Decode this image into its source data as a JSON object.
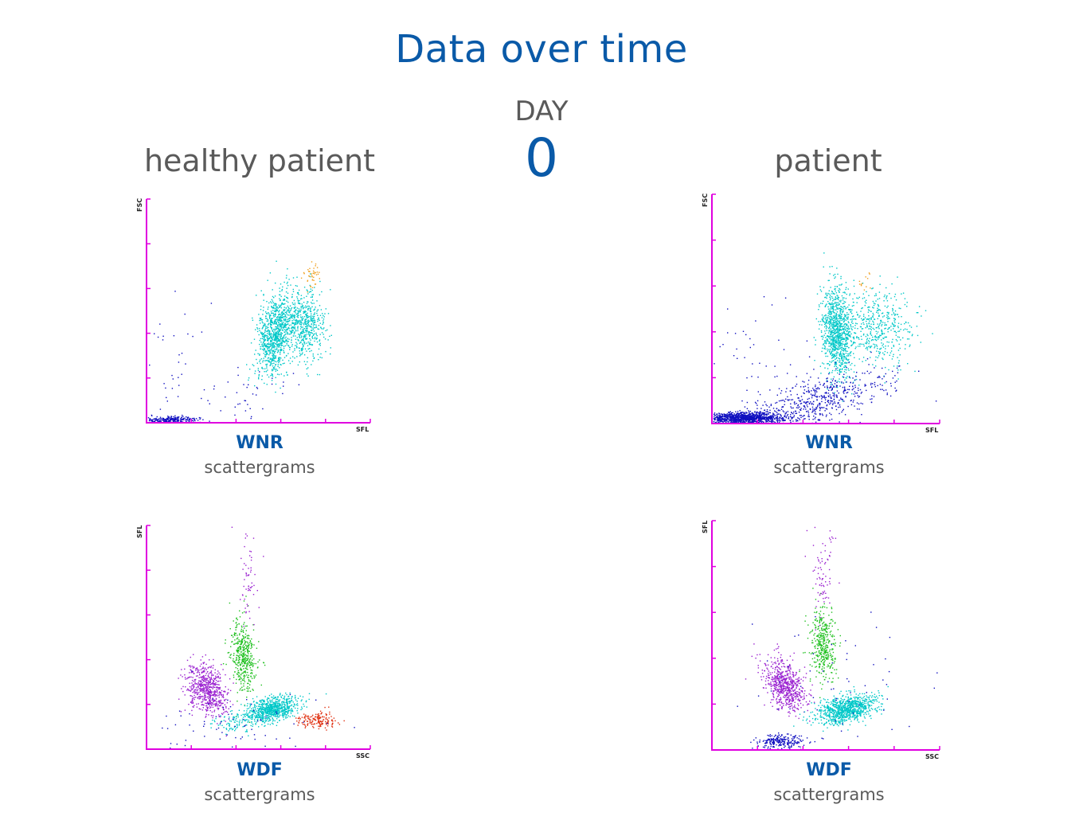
{
  "header": {
    "title": "Data over time",
    "day_label": "DAY",
    "day_value": "0"
  },
  "columns": {
    "left_title": "healthy patient",
    "right_title": "patient"
  },
  "captions": {
    "wnr": "WNR",
    "wdf": "WDF",
    "sub": "scattergrams"
  },
  "colors": {
    "axis": "#e000e0",
    "accent_blue": "#0a5aa8",
    "text_gray": "#5a5a5a",
    "basophil_orange": "#f0a020",
    "neutrophil_cyan": "#00c8c8",
    "debris_blue": "#1010c0",
    "lymph_purple": "#9a20d0",
    "mono_green": "#20c020",
    "eos_red": "#e03010"
  },
  "chart_data": [
    {
      "id": "wnr-healthy",
      "type": "scatter",
      "title": "WNR",
      "xlabel": "SFL",
      "ylabel": "FSC",
      "xlim": [
        0,
        100
      ],
      "ylim": [
        0,
        100
      ],
      "clusters": [
        {
          "name": "neutrophils",
          "color": "#00c8c8",
          "n": 900,
          "cx": 57,
          "cy": 40,
          "sx": 3.6,
          "sy": 9,
          "rot": -0.15
        },
        {
          "name": "neutrophils-right",
          "color": "#00c8c8",
          "n": 600,
          "cx": 70,
          "cy": 44,
          "sx": 4.5,
          "sy": 8,
          "rot": 0
        },
        {
          "name": "basophils",
          "color": "#f0a020",
          "n": 40,
          "cx": 73,
          "cy": 65,
          "sx": 2,
          "sy": 3,
          "rot": 0
        },
        {
          "name": "debris-floor",
          "color": "#1010c0",
          "n": 260,
          "cx": 10,
          "cy": 1.5,
          "sx": 7,
          "sy": 0.8,
          "rot": 0
        },
        {
          "name": "debris-rise",
          "color": "#1010c0",
          "n": 40,
          "cx": 40,
          "cy": 12,
          "sx": 16,
          "sy": 5,
          "rot": 0.3
        },
        {
          "name": "ghost-scatter",
          "color": "#1010c0",
          "n": 35,
          "cx": 10,
          "cy": 25,
          "sx": 8,
          "sy": 18,
          "rot": 0
        }
      ]
    },
    {
      "id": "wnr-patient",
      "type": "scatter",
      "title": "WNR",
      "xlabel": "SFL",
      "ylabel": "FSC",
      "xlim": [
        0,
        100
      ],
      "ylim": [
        0,
        100
      ],
      "clusters": [
        {
          "name": "neutrophils-core",
          "color": "#00c8c8",
          "n": 1000,
          "cx": 55,
          "cy": 40,
          "sx": 3.5,
          "sy": 10,
          "rot": 0.05
        },
        {
          "name": "neutrophils-spread",
          "color": "#00c8c8",
          "n": 450,
          "cx": 73,
          "cy": 42,
          "sx": 7,
          "sy": 8,
          "rot": 0
        },
        {
          "name": "basophils",
          "color": "#f0a020",
          "n": 12,
          "cx": 67,
          "cy": 62,
          "sx": 2,
          "sy": 2,
          "rot": 0
        },
        {
          "name": "debris-floor",
          "color": "#1010c0",
          "n": 1100,
          "cx": 14,
          "cy": 2.5,
          "sx": 9,
          "sy": 1.3,
          "rot": 0
        },
        {
          "name": "debris-arc",
          "color": "#1010c0",
          "n": 600,
          "cx": 45,
          "cy": 10,
          "sx": 18,
          "sy": 5,
          "rot": 0.28
        },
        {
          "name": "ghost-scatter",
          "color": "#1010c0",
          "n": 40,
          "cx": 20,
          "cy": 28,
          "sx": 12,
          "sy": 15,
          "rot": 0
        }
      ]
    },
    {
      "id": "wdf-healthy",
      "type": "scatter",
      "title": "WDF",
      "xlabel": "SSC",
      "ylabel": "SFL",
      "xlim": [
        0,
        100
      ],
      "ylim": [
        0,
        100
      ],
      "clusters": [
        {
          "name": "lymphocytes",
          "color": "#9a20d0",
          "n": 650,
          "cx": 27,
          "cy": 27,
          "sx": 4,
          "sy": 6,
          "rot": 0.5
        },
        {
          "name": "monocytes",
          "color": "#20c020",
          "n": 420,
          "cx": 43,
          "cy": 42,
          "sx": 2.8,
          "sy": 8,
          "rot": 0.1
        },
        {
          "name": "mono-tail",
          "color": "#9a20d0",
          "n": 60,
          "cx": 45,
          "cy": 78,
          "sx": 2.5,
          "sy": 12,
          "rot": 0
        },
        {
          "name": "neutrophils",
          "color": "#00c8c8",
          "n": 800,
          "cx": 56,
          "cy": 18,
          "sx": 6,
          "sy": 2.5,
          "rot": 0.2
        },
        {
          "name": "neutro-left",
          "color": "#00c8c8",
          "n": 90,
          "cx": 40,
          "cy": 12,
          "sx": 6,
          "sy": 2,
          "rot": 0.1
        },
        {
          "name": "eosinophils",
          "color": "#e03010",
          "n": 160,
          "cx": 76,
          "cy": 13,
          "sx": 4,
          "sy": 1.6,
          "rot": 0
        },
        {
          "name": "debris",
          "color": "#1010c0",
          "n": 70,
          "cx": 42,
          "cy": 12,
          "sx": 20,
          "sy": 7,
          "rot": 0
        }
      ]
    },
    {
      "id": "wdf-patient",
      "type": "scatter",
      "title": "WDF",
      "xlabel": "SSC",
      "ylabel": "SFL",
      "xlim": [
        0,
        100
      ],
      "ylim": [
        0,
        100
      ],
      "clusters": [
        {
          "name": "lymphocytes",
          "color": "#9a20d0",
          "n": 650,
          "cx": 32,
          "cy": 28,
          "sx": 4,
          "sy": 6,
          "rot": 0.5
        },
        {
          "name": "monocytes",
          "color": "#20c020",
          "n": 380,
          "cx": 49,
          "cy": 47,
          "sx": 2.8,
          "sy": 8,
          "rot": 0.05
        },
        {
          "name": "mono-tail",
          "color": "#9a20d0",
          "n": 80,
          "cx": 49,
          "cy": 78,
          "sx": 3,
          "sy": 12,
          "rot": 0
        },
        {
          "name": "neutrophils",
          "color": "#00c8c8",
          "n": 900,
          "cx": 59,
          "cy": 18,
          "sx": 6.5,
          "sy": 2.8,
          "rot": 0.22
        },
        {
          "name": "debris-bottom",
          "color": "#1010c0",
          "n": 230,
          "cx": 30,
          "cy": 4,
          "sx": 5,
          "sy": 1.6,
          "rot": 0
        },
        {
          "name": "debris-scatter",
          "color": "#1010c0",
          "n": 60,
          "cx": 55,
          "cy": 30,
          "sx": 22,
          "sy": 14,
          "rot": 0
        }
      ]
    }
  ]
}
